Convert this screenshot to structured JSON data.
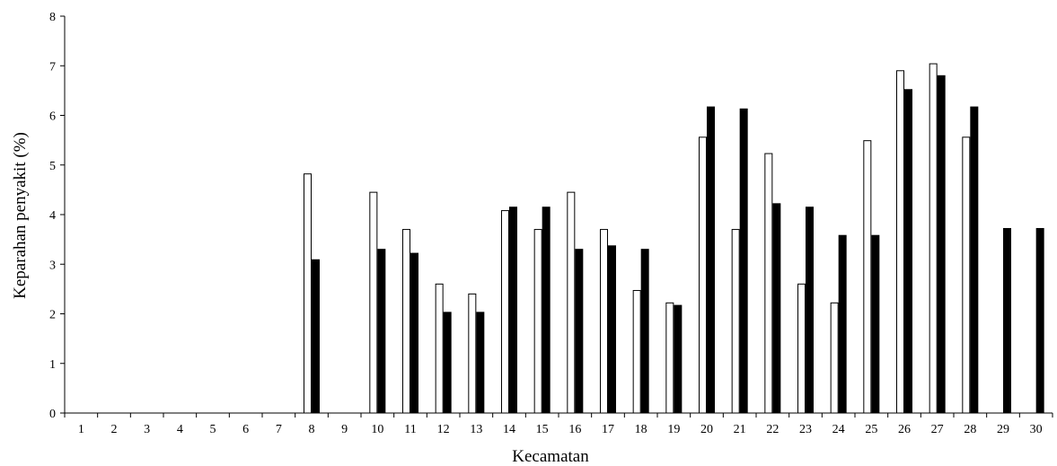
{
  "chart_data": {
    "type": "bar",
    "title": "",
    "xlabel": "Kecamatan",
    "ylabel": "Keparahan penyakit (%)",
    "ylim": [
      0,
      8
    ],
    "yticks": [
      0,
      1,
      2,
      3,
      4,
      5,
      6,
      7,
      8
    ],
    "grid": false,
    "categories": [
      "1",
      "2",
      "3",
      "4",
      "5",
      "6",
      "7",
      "8",
      "9",
      "10",
      "11",
      "12",
      "13",
      "14",
      "15",
      "16",
      "17",
      "18",
      "19",
      "20",
      "21",
      "22",
      "23",
      "24",
      "25",
      "26",
      "27",
      "28",
      "29",
      "30"
    ],
    "series": [
      {
        "fill": "#ffffff",
        "values": [
          0,
          0,
          0,
          0,
          0,
          0,
          0,
          4.82,
          0,
          4.45,
          3.7,
          2.6,
          2.4,
          4.08,
          3.7,
          4.45,
          3.7,
          2.47,
          2.22,
          5.56,
          3.7,
          5.23,
          2.6,
          2.22,
          5.49,
          6.9,
          7.04,
          5.56,
          0,
          0
        ]
      },
      {
        "fill": "#000000",
        "values": [
          0,
          0,
          0,
          0,
          0,
          0,
          0,
          3.09,
          0,
          3.3,
          3.22,
          2.03,
          2.03,
          4.15,
          4.15,
          3.3,
          3.37,
          3.3,
          2.17,
          6.17,
          6.13,
          4.22,
          4.15,
          3.58,
          3.58,
          6.52,
          6.8,
          6.17,
          3.72,
          3.72
        ]
      }
    ]
  }
}
